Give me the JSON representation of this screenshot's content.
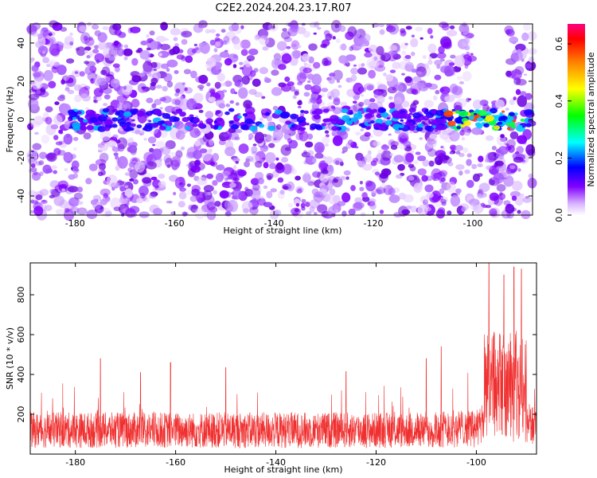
{
  "title": "C2E2.2024.204.23.17.R07",
  "chart_data": [
    {
      "type": "heatmap",
      "name": "spectrogram",
      "xlabel": "Height of straight line (km)",
      "ylabel": "Frequency (Hz)",
      "xlim": [
        -189,
        -88
      ],
      "ylim": [
        -50,
        50
      ],
      "xticks": [
        -180,
        -160,
        -140,
        -120,
        -100
      ],
      "yticks": [
        -40,
        -20,
        0,
        20,
        40
      ],
      "colorbar": {
        "label": "Normalized spectral amplitude",
        "range": [
          0.0,
          0.67
        ],
        "ticks": [
          0.0,
          0.2,
          0.4,
          0.6
        ],
        "colormap": [
          "#ffffff",
          "#8000ff",
          "#0000ff",
          "#00ffff",
          "#00ff00",
          "#ffff00",
          "#ff8000",
          "#ff0000",
          "#ff0080"
        ]
      },
      "description_band": {
        "center_hz": 0,
        "halfwidth_hz": 5,
        "strong_region_km": [
          -105,
          -90
        ]
      }
    },
    {
      "type": "line",
      "name": "snr",
      "xlabel": "Height of straight line (km)",
      "ylabel": "SNR (10 * v/v)",
      "xlim": [
        -189,
        -88
      ],
      "ylim": [
        0,
        960
      ],
      "xticks": [
        -180,
        -160,
        -140,
        -120,
        -100
      ],
      "yticks": [
        200,
        400,
        600,
        800
      ],
      "color": "#f03030",
      "baseline_mean": 120,
      "spike_peaks": [
        {
          "x": -175,
          "y": 480
        },
        {
          "x": -167,
          "y": 410
        },
        {
          "x": -161,
          "y": 460
        },
        {
          "x": -150,
          "y": 435
        },
        {
          "x": -126,
          "y": 415
        },
        {
          "x": -110,
          "y": 480
        },
        {
          "x": -107,
          "y": 540
        },
        {
          "x": -97.5,
          "y": 960
        },
        {
          "x": -94.5,
          "y": 900
        },
        {
          "x": -92.5,
          "y": 940
        },
        {
          "x": -91,
          "y": 930
        }
      ]
    }
  ]
}
